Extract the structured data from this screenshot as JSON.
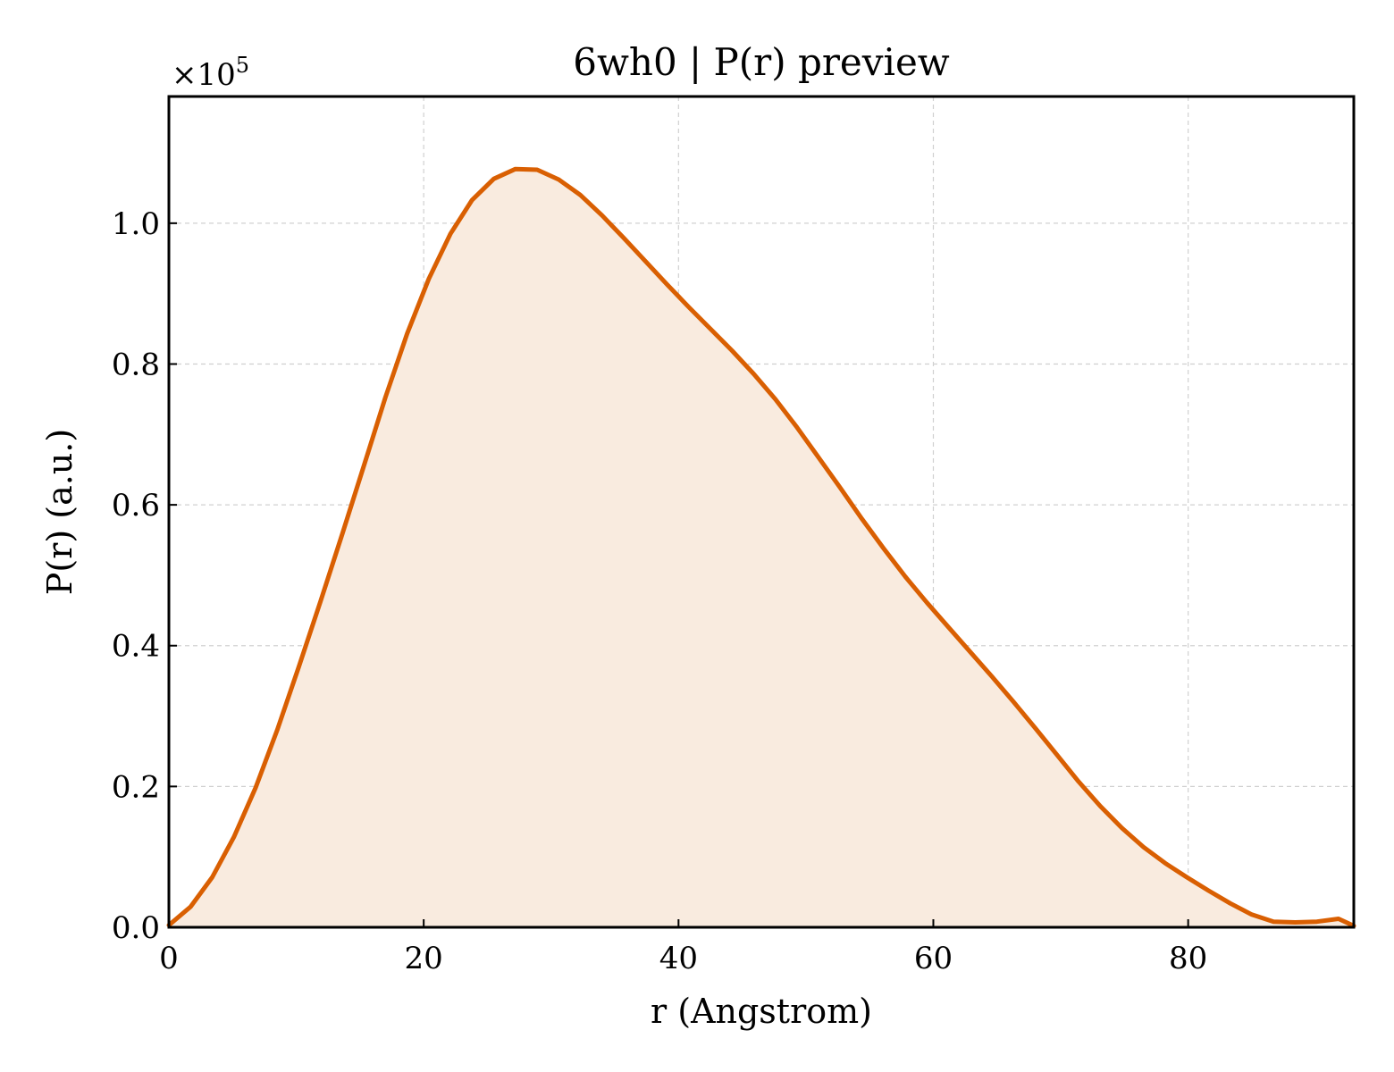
{
  "chart_data": {
    "type": "area",
    "title": "6wh0 | P(r) preview",
    "xlabel": "r (Angstrom)",
    "ylabel": "P(r) (a.u.)",
    "y_multiplier_label": "×10",
    "y_multiplier_exponent": "5",
    "xlim": [
      0,
      93
    ],
    "ylim": [
      0,
      1.18
    ],
    "xticks": [
      0,
      20,
      40,
      60,
      80
    ],
    "yticks": [
      0.0,
      0.2,
      0.4,
      0.6,
      0.8,
      1.0
    ],
    "xtick_labels": [
      "0",
      "20",
      "40",
      "60",
      "80"
    ],
    "ytick_labels": [
      "0.0",
      "0.2",
      "0.4",
      "0.6",
      "0.8",
      "1.0"
    ],
    "grid": true,
    "colors": {
      "line": "#d95f02",
      "fill": "#f9ebdf"
    },
    "series": [
      {
        "x": [
          0,
          1.7,
          3.4,
          5.1,
          6.8,
          8.5,
          10.2,
          11.9,
          13.6,
          15.3,
          17.0,
          18.7,
          20.4,
          22.1,
          23.8,
          25.5,
          27.2,
          28.9,
          30.6,
          32.3,
          34.0,
          35.7,
          37.4,
          39.1,
          40.8,
          42.5,
          44.2,
          45.9,
          47.6,
          49.3,
          51.0,
          52.7,
          54.4,
          56.1,
          57.8,
          59.5,
          61.2,
          62.9,
          64.6,
          66.3,
          68.0,
          69.7,
          71.4,
          73.1,
          74.8,
          76.5,
          78.2,
          79.9,
          81.6,
          83.3,
          85.0,
          86.7,
          88.4,
          90.1,
          91.8,
          93.0
        ],
        "y": [
          0.003,
          0.029,
          0.071,
          0.128,
          0.198,
          0.28,
          0.37,
          0.463,
          0.558,
          0.655,
          0.753,
          0.843,
          0.921,
          0.985,
          1.033,
          1.063,
          1.077,
          1.076,
          1.062,
          1.04,
          1.011,
          0.979,
          0.946,
          0.913,
          0.881,
          0.85,
          0.819,
          0.786,
          0.75,
          0.71,
          0.667,
          0.624,
          0.58,
          0.538,
          0.498,
          0.461,
          0.426,
          0.391,
          0.356,
          0.32,
          0.283,
          0.245,
          0.207,
          0.172,
          0.141,
          0.114,
          0.091,
          0.071,
          0.052,
          0.034,
          0.018,
          0.008,
          0.007,
          0.008,
          0.012,
          0.002
        ]
      }
    ]
  }
}
